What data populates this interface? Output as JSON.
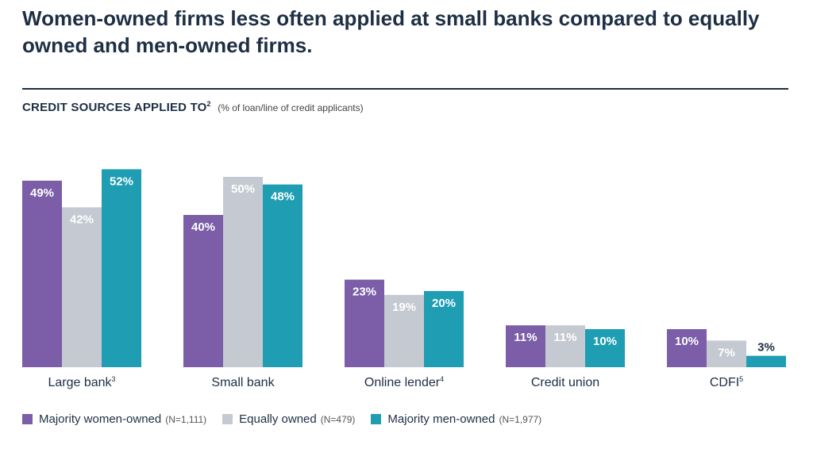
{
  "title": "Women-owned firms less often applied at small banks compared to equally owned and men-owned firms.",
  "subtitle": {
    "main": "CREDIT SOURCES APPLIED TO",
    "footnote": "2",
    "note": "(% of loan/line of credit applicants)"
  },
  "colors": {
    "women": "#7b5ea7",
    "equal": "#c5c9d1",
    "men": "#1f9db3",
    "text_dark": "#1e2f45"
  },
  "legend": [
    {
      "name": "Majority women-owned",
      "n": "(N=1,111)",
      "color": "#7b5ea7"
    },
    {
      "name": "Equally owned",
      "n": "(N=479)",
      "color": "#c5c9d1"
    },
    {
      "name": "Majority men-owned",
      "n": "(N=1,977)",
      "color": "#1f9db3"
    }
  ],
  "chart_data": {
    "type": "bar",
    "categories": [
      "Large bank",
      "Small bank",
      "Online lender",
      "Credit union",
      "CDFI"
    ],
    "category_footnotes": [
      "3",
      "",
      "4",
      "",
      "5"
    ],
    "ylim": [
      0,
      100
    ],
    "grid": false,
    "legend_position": "bottom",
    "series": [
      {
        "name": "Majority women-owned",
        "values": [
          49,
          40,
          23,
          11,
          10
        ],
        "labels": [
          "49%",
          "40%",
          "23%",
          "11%",
          "10%"
        ]
      },
      {
        "name": "Equally owned",
        "values": [
          42,
          50,
          19,
          11,
          7
        ],
        "labels": [
          "42%",
          "50%",
          "19%",
          "11%",
          "7%"
        ]
      },
      {
        "name": "Majority men-owned",
        "values": [
          52,
          48,
          20,
          10,
          3
        ],
        "labels": [
          "52%",
          "48%",
          "20%",
          "10%",
          "3%"
        ]
      }
    ]
  }
}
